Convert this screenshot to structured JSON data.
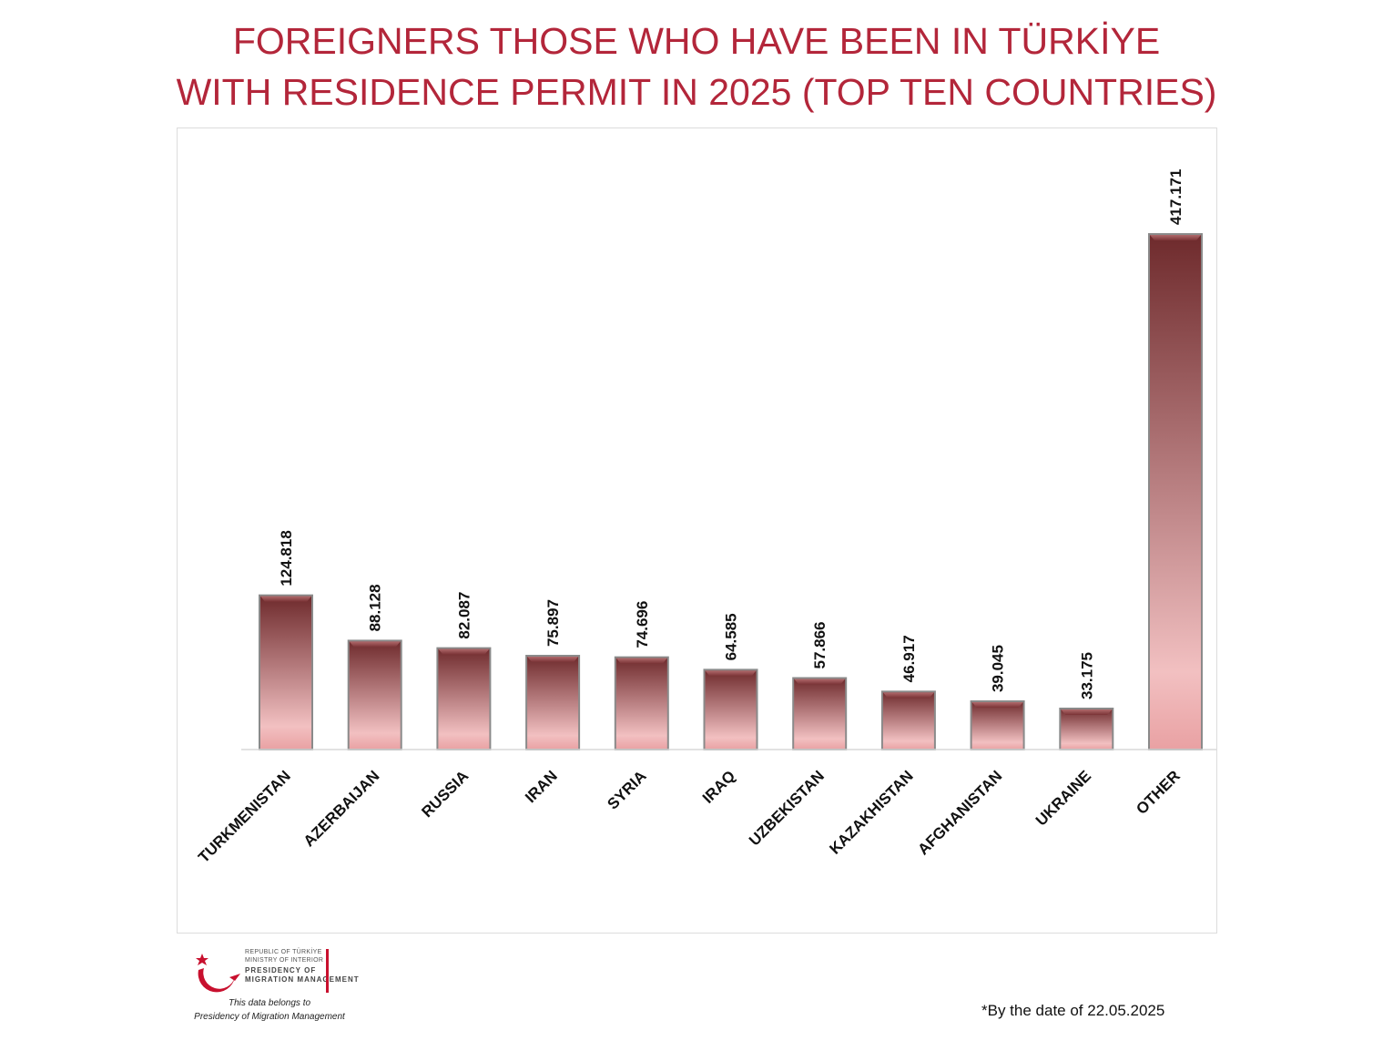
{
  "title": {
    "line1": "FOREIGNERS THOSE WHO HAVE BEEN IN TÜRKİYE",
    "line2": "WITH RESIDENCE PERMIT IN 2025 (TOP TEN COUNTRIES)"
  },
  "chart_data": {
    "type": "bar",
    "title": "FOREIGNERS THOSE WHO HAVE BEEN IN TÜRKİYE WITH RESIDENCE PERMIT IN 2025 (TOP TEN COUNTRIES)",
    "categories": [
      "TURKMENISTAN",
      "AZERBAIJAN",
      "RUSSIA",
      "IRAN",
      "SYRIA",
      "IRAQ",
      "UZBEKISTAN",
      "KAZAKHISTAN",
      "AFGHANISTAN",
      "UKRAINE",
      "OTHER"
    ],
    "values": [
      124818,
      88128,
      82087,
      75897,
      74696,
      64585,
      57866,
      46917,
      39045,
      33175,
      417171
    ],
    "value_labels": [
      "124.818",
      "88.128",
      "82.087",
      "75.897",
      "74.696",
      "64.585",
      "57.866",
      "46.917",
      "39.045",
      "33.175",
      "417.171"
    ],
    "ylim": [
      0,
      417171
    ],
    "grid": false,
    "legend": "none",
    "colors": {
      "bar_top": "#6e2a2c",
      "bar_bottom": "#f2bcbd",
      "title": "#b3263a"
    }
  },
  "logo": {
    "line1": "REPUBLIC OF TÜRKİYE",
    "line2": "MINISTRY OF INTERIOR",
    "line3": "PRESIDENCY OF",
    "line4": "MIGRATION MANAGEMENT",
    "icon": "crescent-star-icon"
  },
  "attribution": {
    "line1": "This data belongs to",
    "line2": "Presidency of Migration Management"
  },
  "footnote": "*By the date of 22.05.2025"
}
